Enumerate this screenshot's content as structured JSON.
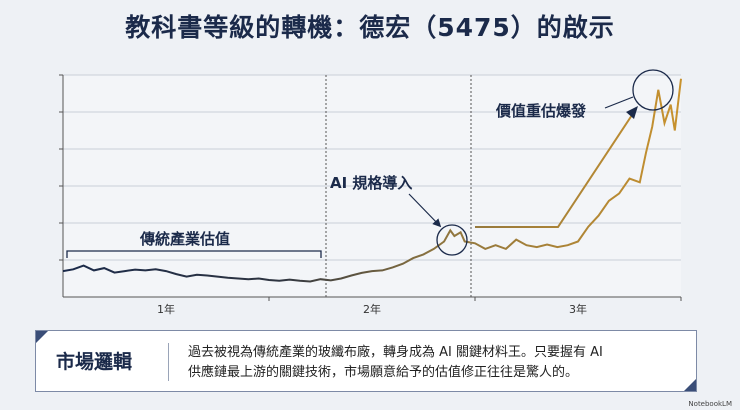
{
  "title": "教科書等級的轉機：德宏（5475）的啟示",
  "annotations": {
    "traditional": "傳統產業估值",
    "ai_spec": "AI 規格導入",
    "revaluation": "價值重估爆發"
  },
  "chart_data": {
    "type": "line",
    "title": "教科書等級的轉機：德宏（5475）的啟示",
    "xlabel": "",
    "ylabel": "",
    "x_ticks": [
      "1年",
      "2年",
      "3年"
    ],
    "xlim": [
      0,
      3
    ],
    "ylim": [
      0,
      6
    ],
    "grid": true,
    "y_tick_labels_shown": false,
    "line_colors": [
      "#1b2a4a",
      "#c8922e"
    ],
    "x": [
      0,
      0.05,
      0.1,
      0.15,
      0.2,
      0.25,
      0.3,
      0.35,
      0.4,
      0.45,
      0.5,
      0.55,
      0.6,
      0.65,
      0.7,
      0.75,
      0.8,
      0.85,
      0.9,
      0.95,
      1.0,
      1.05,
      1.1,
      1.15,
      1.2,
      1.25,
      1.3,
      1.35,
      1.4,
      1.45,
      1.5,
      1.55,
      1.6,
      1.65,
      1.7,
      1.75,
      1.8,
      1.85,
      1.88,
      1.9,
      1.93,
      1.95,
      2.0,
      2.05,
      2.1,
      2.15,
      2.2,
      2.25,
      2.3,
      2.35,
      2.4,
      2.45,
      2.5,
      2.55,
      2.6,
      2.65,
      2.7,
      2.75,
      2.8,
      2.83,
      2.86,
      2.89,
      2.92,
      2.95,
      2.97,
      3.0
    ],
    "values": [
      0.7,
      0.75,
      0.85,
      0.72,
      0.78,
      0.66,
      0.7,
      0.74,
      0.72,
      0.75,
      0.7,
      0.62,
      0.55,
      0.6,
      0.58,
      0.55,
      0.52,
      0.5,
      0.48,
      0.5,
      0.46,
      0.44,
      0.47,
      0.44,
      0.42,
      0.48,
      0.45,
      0.5,
      0.58,
      0.65,
      0.7,
      0.72,
      0.8,
      0.9,
      1.05,
      1.15,
      1.3,
      1.5,
      1.8,
      1.65,
      1.75,
      1.5,
      1.45,
      1.3,
      1.4,
      1.3,
      1.55,
      1.4,
      1.35,
      1.42,
      1.35,
      1.4,
      1.5,
      1.9,
      2.2,
      2.6,
      2.8,
      3.2,
      3.1,
      3.9,
      4.6,
      5.6,
      4.7,
      5.2,
      4.5,
      5.9
    ]
  },
  "summary": {
    "label": "市場邏輯",
    "text_line1": "過去被視為傳統產業的玻纖布廠，轉身成為 AI 關鍵材料王。只要握有 AI",
    "text_line2": "供應鏈最上游的關鍵技術，市場願意給予的估值修正往往是驚人的。"
  },
  "brand": "NotebookLM"
}
